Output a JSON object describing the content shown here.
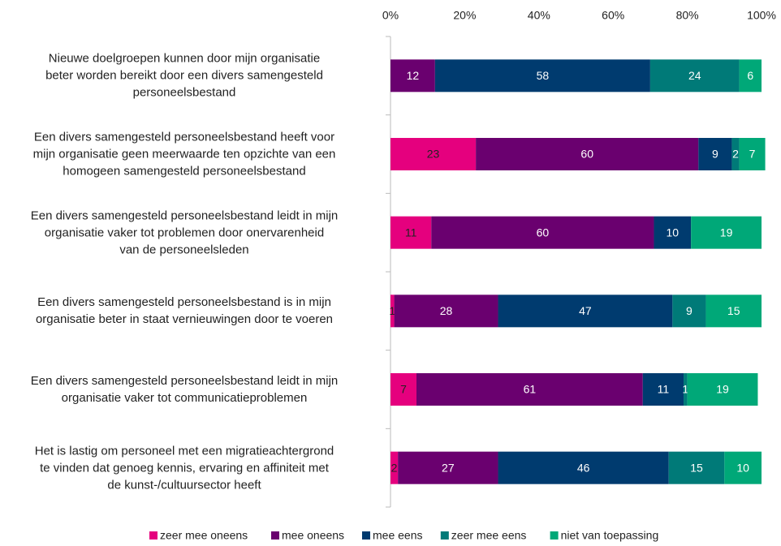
{
  "chart_data": {
    "type": "stacked-bar-horizontal",
    "categories": [
      "Nieuwe doelgroepen kunnen door mijn organisatie\nbeter worden bereikt door een divers samengesteld\npersoneelsbestand",
      "Een divers samengesteld personeelsbestand heeft voor\nmijn organisatie geen meerwaarde ten opzichte van een\nhomogeen samengesteld personeelsbestand",
      "Een divers samengesteld personeelsbestand leidt in mijn\norganisatie vaker tot problemen door onervarenheid\nvan de personeelsleden",
      "Een divers samengesteld personeelsbestand is in mijn\norganisatie beter in staat vernieuwingen door te voeren",
      "Een divers samengesteld personeelsbestand leidt in mijn\norganisatie vaker tot communicatieproblemen",
      "Het is lastig om personeel met een migratieachtergrond\nte vinden dat genoeg kennis, ervaring en affiniteit met\nde kunst-/cultuursector heeft"
    ],
    "series": [
      {
        "name": "zeer mee oneens",
        "color": "#e5007e",
        "values": [
          null,
          23,
          11,
          1,
          7,
          2
        ]
      },
      {
        "name": "mee oneens",
        "color": "#6a006f",
        "values": [
          12,
          60,
          60,
          28,
          61,
          27
        ]
      },
      {
        "name": "mee eens",
        "color": "#003b6f",
        "values": [
          58,
          9,
          10,
          47,
          11,
          46
        ]
      },
      {
        "name": "zeer mee eens",
        "color": "#007a78",
        "values": [
          24,
          2,
          null,
          9,
          1,
          15
        ]
      },
      {
        "name": "niet van toepassing",
        "color": "#00a878",
        "values": [
          6,
          7,
          19,
          15,
          19,
          10
        ]
      }
    ],
    "xlim": [
      0,
      100
    ],
    "xticks": [
      {
        "value": 0,
        "label": "0%"
      },
      {
        "value": 20,
        "label": "20%"
      },
      {
        "value": 40,
        "label": "40%"
      },
      {
        "value": 60,
        "label": "60%"
      },
      {
        "value": 80,
        "label": "80%"
      },
      {
        "value": 100,
        "label": "100%"
      }
    ],
    "legend": "bottom"
  }
}
